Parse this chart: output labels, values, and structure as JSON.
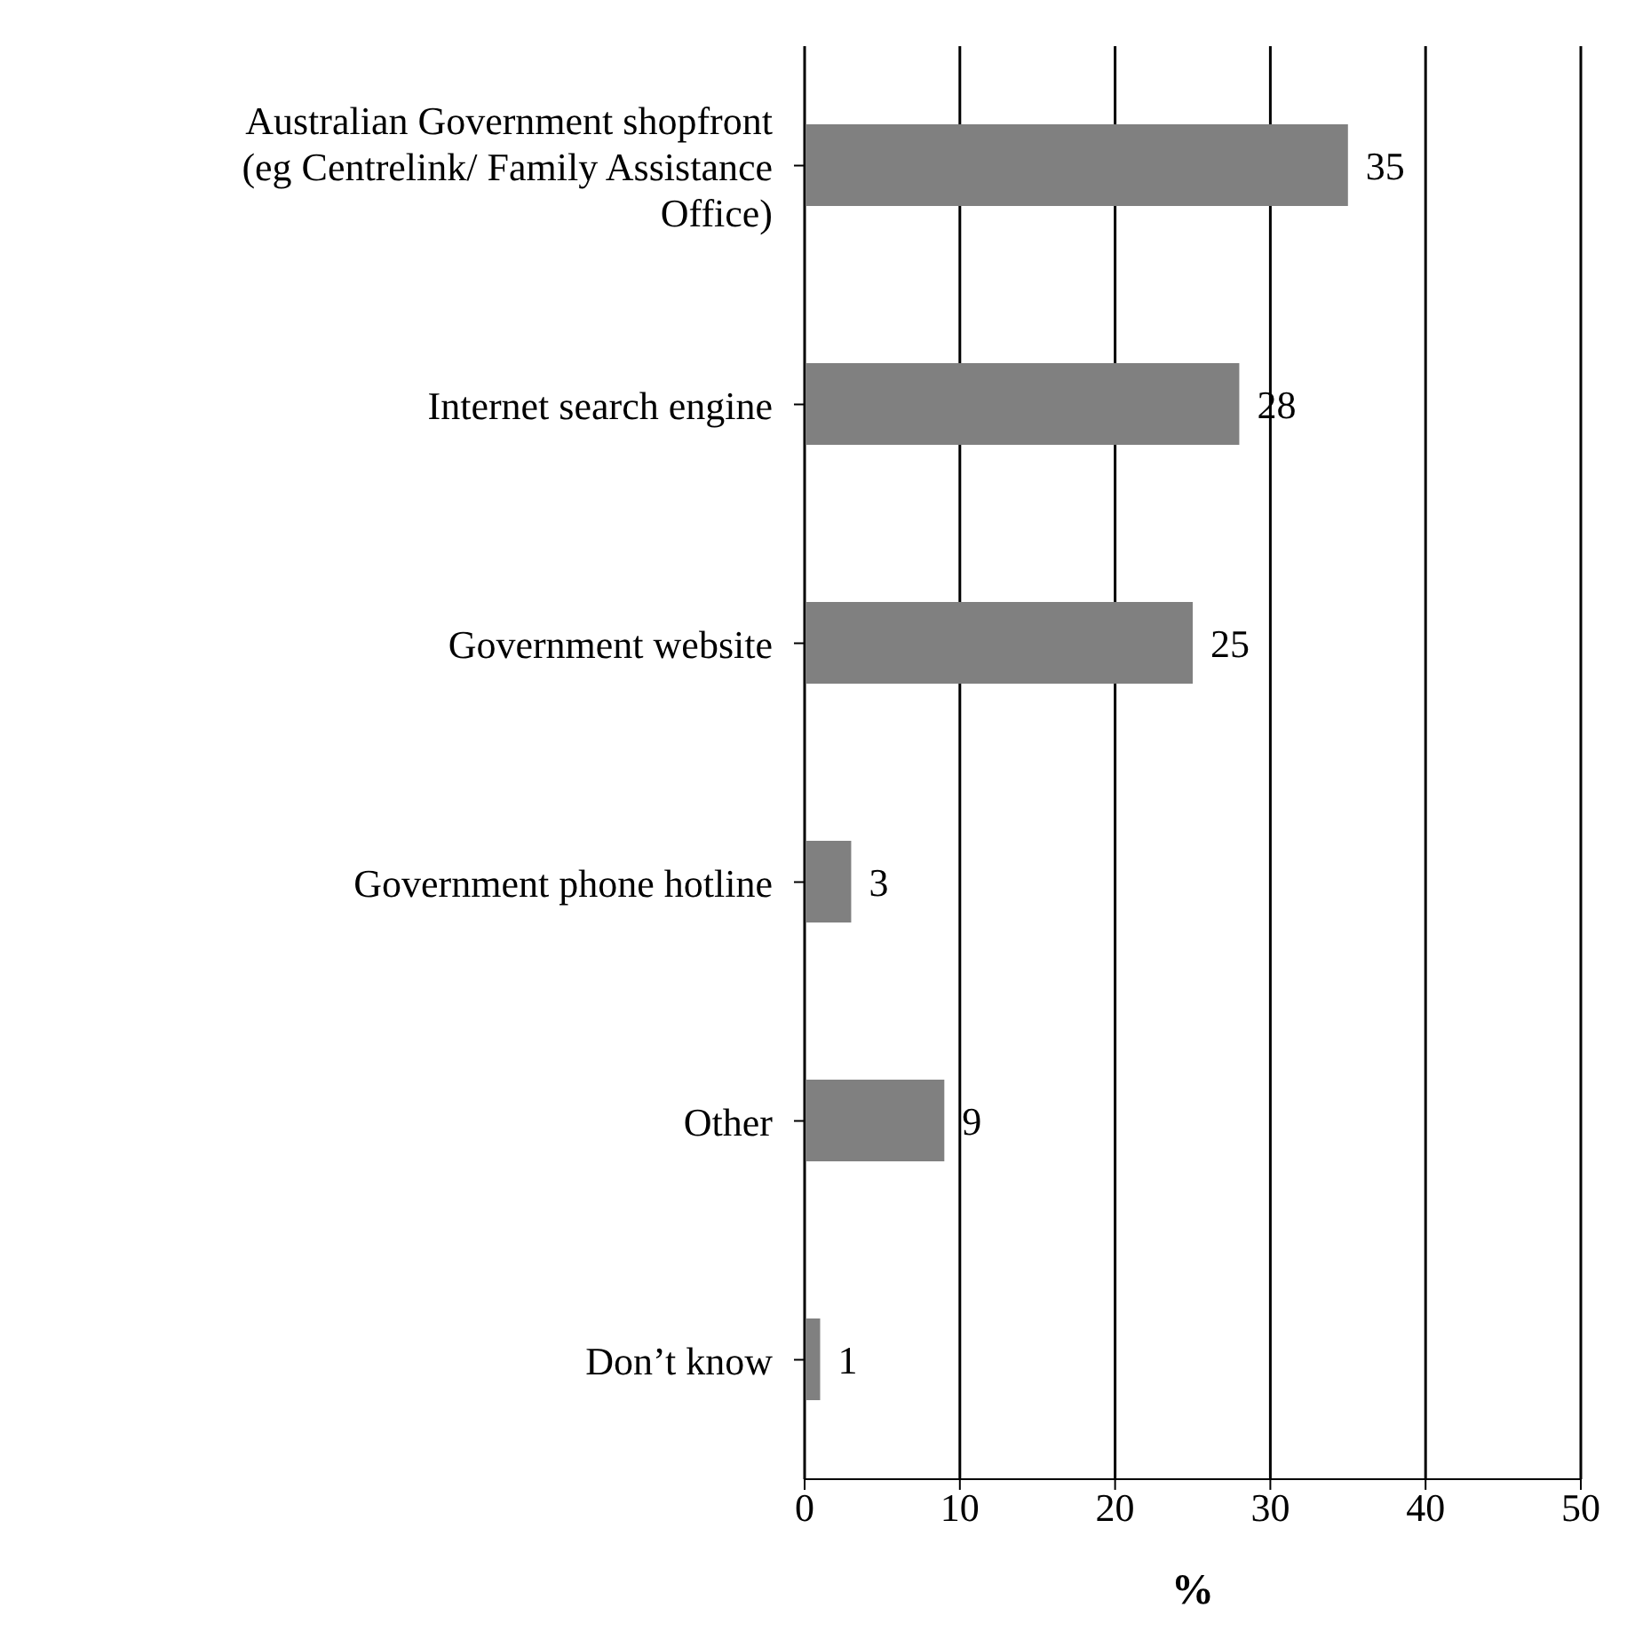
{
  "chart_data": {
    "type": "bar",
    "orientation": "horizontal",
    "categories": [
      "Australian Government shopfront (eg Centrelink/ Family Assistance Office)",
      "Internet search engine",
      "Government website",
      "Government phone hotline",
      "Other",
      "Don’t know"
    ],
    "values": [
      35,
      28,
      25,
      3,
      9,
      1
    ],
    "color": "#808080",
    "xlim": [
      0,
      50
    ],
    "xticks": [
      0,
      10,
      20,
      30,
      40,
      50
    ],
    "xlabel": "%",
    "grid": "x",
    "data_labels": true,
    "legend": false
  }
}
